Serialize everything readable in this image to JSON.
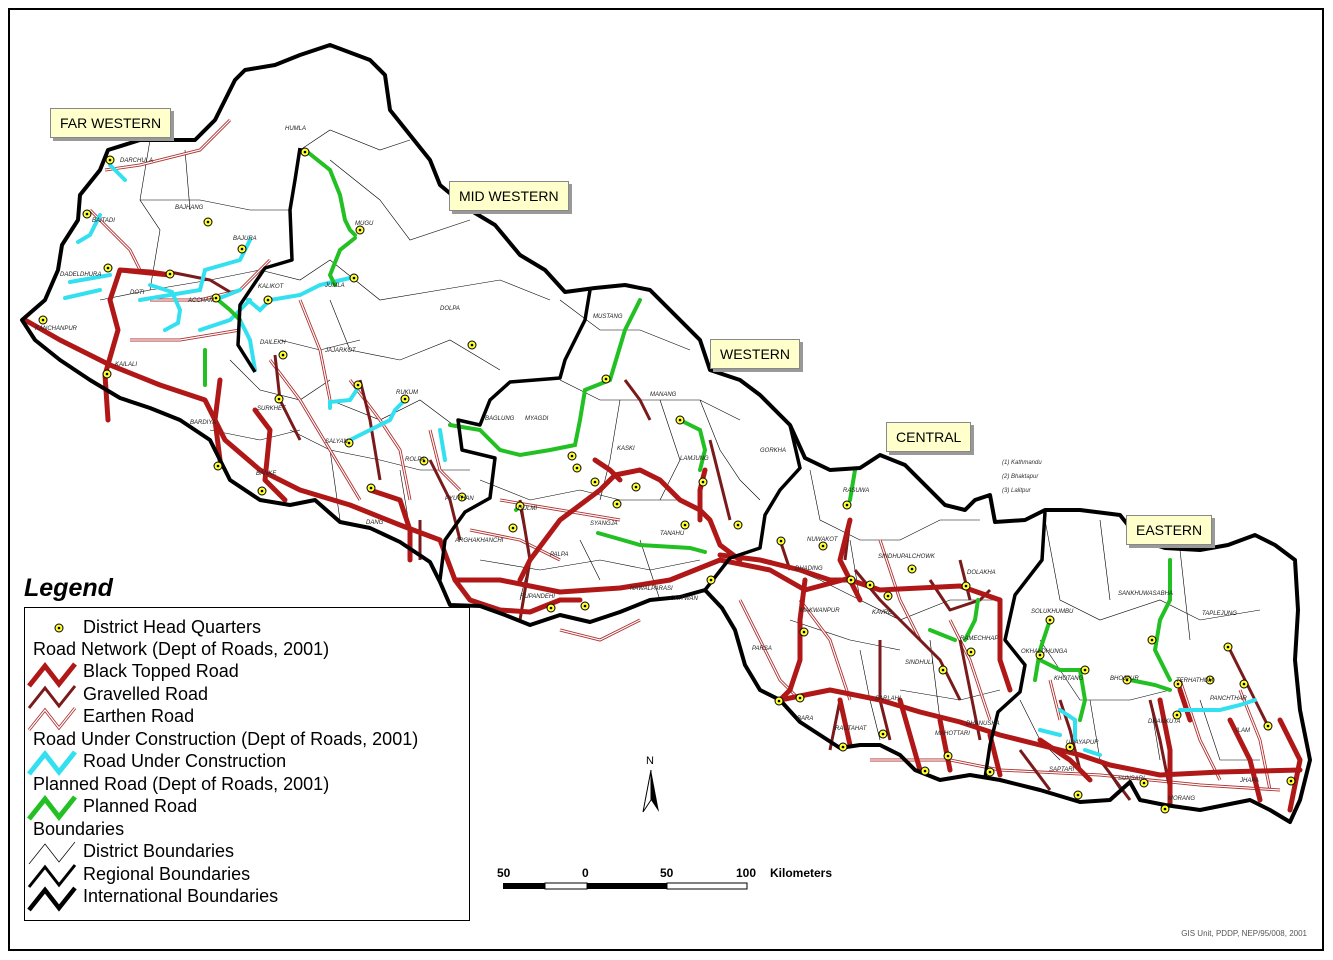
{
  "regions": {
    "far_western": "FAR WESTERN",
    "mid_western": "MID WESTERN",
    "western": "WESTERN",
    "central": "CENTRAL",
    "eastern": "EASTERN"
  },
  "districts": [
    "DARCHULA",
    "BAITADI",
    "BAJHANG",
    "BAJURA",
    "DADELDHURA",
    "DOTI",
    "ACCHAM",
    "KALIKOT",
    "KANCHANPUR",
    "KAILALI",
    "HUMLA",
    "MUGU",
    "JUMLA",
    "DAILEKH",
    "DOLPA",
    "JAJARKOT",
    "SURKHET",
    "RUKUM",
    "SALYAN",
    "ROLPA",
    "BARDIYA",
    "BANKE",
    "DANG",
    "PYUTHAN",
    "ARGHAKHANCHI",
    "MUSTANG",
    "MYAGDI",
    "BAGLUNG",
    "MANANG",
    "KASKI",
    "LAMJUNG",
    "GORKHA",
    "GULMI",
    "PALPA",
    "SYANGJA",
    "TANAHU",
    "RUPANDEHI",
    "NAWALPARASI",
    "CHITWAN",
    "DHADING",
    "RASUWA",
    "NUWAKOT",
    "SINDHUPALCHOWK",
    "DOLAKHA",
    "KAVRE",
    "MAKWANPUR",
    "PARSA",
    "BARA",
    "SINDHULI",
    "RAMECHHAP",
    "SARLAHI",
    "RAUTAHAT",
    "MAHOTTARI",
    "DHANUSHA",
    "SOLUKHUMBU",
    "OKHALDHUNGA",
    "KHOTANG",
    "BHOJPUR",
    "SANKHUWASABHA",
    "TAPLEJUNG",
    "TERHATHUM",
    "PANCHTHAR",
    "ILAM",
    "DHANKUTA",
    "UDAYAPUR",
    "SAPTARI",
    "SUNSARI",
    "MORANG",
    "JHAPA"
  ],
  "kathmandu_valley": [
    "(1) Kathmandu",
    "(2) Bhaktapur",
    "(3) Lalitpur"
  ],
  "legend": {
    "title": "Legend",
    "items": [
      "District Head Quarters",
      "Road Network (Dept of Roads, 2001)",
      "Black Topped Road",
      "Gravelled Road",
      "Earthen Road",
      "Road Under Construction (Dept of Roads, 2001)",
      "Road Under Construction",
      "Planned Road (Dept of Roads, 2001)",
      "Planned Road",
      "Boundaries",
      "District Boundaries",
      "Regional Boundaries",
      "International Boundaries"
    ]
  },
  "north_arrow": "N",
  "scale": {
    "ticks": [
      "50",
      "0",
      "50",
      "100"
    ],
    "unit": "Kilometers"
  },
  "credit": "GIS Unit, PDDP, NEP/95/008, 2001",
  "colors": {
    "black_topped": "#b01818",
    "gravelled": "#7a1a1a",
    "earthen": "#b03030",
    "under_construction": "#33e0f0",
    "planned": "#22c022",
    "hq_fill": "#ffff33",
    "region_box": "#ffffcc"
  }
}
